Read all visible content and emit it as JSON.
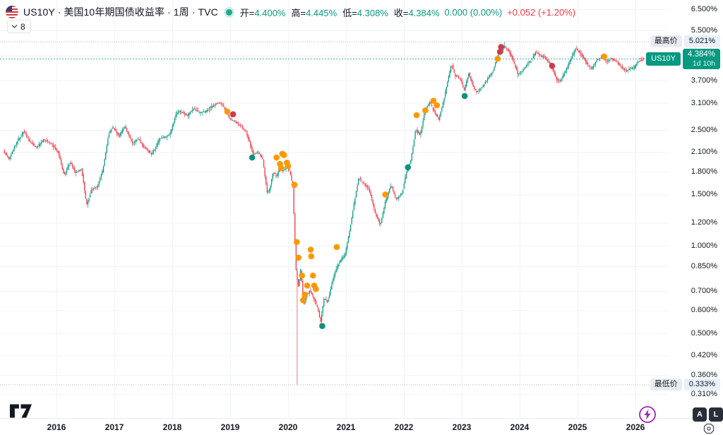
{
  "header": {
    "symbol_title": "US10Y · 美国10年期国债收益率 · 1周 · TVC",
    "ohlc": [
      {
        "label": "开=",
        "value": "4.400%"
      },
      {
        "label": "高=",
        "value": "4.445%"
      },
      {
        "label": "低=",
        "value": "4.308%"
      },
      {
        "label": "收=",
        "value": "4.384%"
      }
    ],
    "change_zero": "0.000 (0.00%)",
    "change_positive": "+0.052 (+1.20%)",
    "badge_count": "8"
  },
  "price_scale": {
    "labels": [
      "6.500%",
      "5.500%",
      "3.700%",
      "3.100%",
      "2.500%",
      "2.100%",
      "1.800%",
      "1.500%",
      "1.200%",
      "1.000%",
      "0.850%",
      "0.700%",
      "0.600%",
      "0.500%",
      "0.420%",
      "0.360%",
      "0.310%"
    ]
  },
  "time_scale": {
    "labels": [
      "2016",
      "2017",
      "2018",
      "2019",
      "2020",
      "2021",
      "2022",
      "2023",
      "2024",
      "2025",
      "2026"
    ]
  },
  "floating_labels": {
    "high": {
      "label": "最高价",
      "value": "5.021%"
    },
    "current": {
      "symbol": "US10Y",
      "price": "4.384%",
      "countdown": "1d 10h"
    },
    "low": {
      "label": "最低价",
      "value": "0.333%"
    }
  },
  "corner_buttons": {
    "a": "A",
    "l": "L"
  },
  "chart_data": {
    "type": "candlestick",
    "symbol": "US10Y",
    "timeframe": "1W",
    "y_scale": "log",
    "x_domain": [
      2015.1,
      2026.17
    ],
    "x_ticks": [
      2016,
      2017,
      2018,
      2019,
      2020,
      2021,
      2022,
      2023,
      2024,
      2025,
      2026
    ],
    "y_axis_ticks": [
      6.5,
      5.5,
      3.7,
      3.1,
      2.5,
      2.1,
      1.8,
      1.5,
      1.2,
      1.0,
      0.85,
      0.7,
      0.6,
      0.5,
      0.42,
      0.36,
      0.31
    ],
    "grid_extra_values": [
      4.5
    ],
    "high": {
      "t": 2023.74,
      "value": 5.021
    },
    "low": {
      "t": 2020.16,
      "value": 0.333
    },
    "last_bar": {
      "open": 4.4,
      "high": 4.445,
      "low": 4.308,
      "close": 4.384
    },
    "anchors": [
      [
        2015.1,
        2.12
      ],
      [
        2015.2,
        1.98
      ],
      [
        2015.3,
        2.2
      ],
      [
        2015.45,
        2.48
      ],
      [
        2015.55,
        2.28
      ],
      [
        2015.68,
        2.18
      ],
      [
        2015.8,
        2.32
      ],
      [
        2015.93,
        2.24
      ],
      [
        2016.05,
        2.1
      ],
      [
        2016.15,
        1.74
      ],
      [
        2016.25,
        1.94
      ],
      [
        2016.35,
        1.78
      ],
      [
        2016.45,
        1.84
      ],
      [
        2016.54,
        1.38
      ],
      [
        2016.62,
        1.55
      ],
      [
        2016.72,
        1.6
      ],
      [
        2016.82,
        1.82
      ],
      [
        2016.92,
        2.42
      ],
      [
        2016.99,
        2.56
      ],
      [
        2017.1,
        2.38
      ],
      [
        2017.2,
        2.58
      ],
      [
        2017.33,
        2.24
      ],
      [
        2017.43,
        2.34
      ],
      [
        2017.53,
        2.18
      ],
      [
        2017.67,
        2.06
      ],
      [
        2017.8,
        2.34
      ],
      [
        2017.9,
        2.36
      ],
      [
        2017.99,
        2.44
      ],
      [
        2018.08,
        2.84
      ],
      [
        2018.16,
        2.9
      ],
      [
        2018.28,
        2.8
      ],
      [
        2018.38,
        2.96
      ],
      [
        2018.5,
        2.86
      ],
      [
        2018.6,
        2.9
      ],
      [
        2018.7,
        3.0
      ],
      [
        2018.8,
        3.1
      ],
      [
        2018.88,
        3.05
      ],
      [
        2018.95,
        2.92
      ],
      [
        2019.0,
        2.74
      ],
      [
        2019.1,
        2.66
      ],
      [
        2019.2,
        2.6
      ],
      [
        2019.3,
        2.44
      ],
      [
        2019.42,
        2.06
      ],
      [
        2019.5,
        2.1
      ],
      [
        2019.58,
        1.98
      ],
      [
        2019.66,
        1.52
      ],
      [
        2019.7,
        1.56
      ],
      [
        2019.76,
        1.8
      ],
      [
        2019.82,
        1.72
      ],
      [
        2019.88,
        1.86
      ],
      [
        2019.94,
        1.8
      ],
      [
        2019.99,
        1.9
      ],
      [
        2020.05,
        1.8
      ],
      [
        2020.1,
        1.6
      ],
      [
        2020.13,
        1.15
      ],
      [
        2020.16,
        0.8
      ],
      [
        2020.2,
        0.72
      ],
      [
        2020.24,
        0.84
      ],
      [
        2020.28,
        0.62
      ],
      [
        2020.34,
        0.68
      ],
      [
        2020.4,
        0.7
      ],
      [
        2020.46,
        0.66
      ],
      [
        2020.52,
        0.62
      ],
      [
        2020.58,
        0.55
      ],
      [
        2020.64,
        0.66
      ],
      [
        2020.7,
        0.64
      ],
      [
        2020.76,
        0.72
      ],
      [
        2020.82,
        0.8
      ],
      [
        2020.88,
        0.86
      ],
      [
        2020.94,
        0.9
      ],
      [
        2021.0,
        0.93
      ],
      [
        2021.08,
        1.12
      ],
      [
        2021.16,
        1.4
      ],
      [
        2021.24,
        1.72
      ],
      [
        2021.32,
        1.64
      ],
      [
        2021.42,
        1.56
      ],
      [
        2021.52,
        1.3
      ],
      [
        2021.61,
        1.18
      ],
      [
        2021.7,
        1.42
      ],
      [
        2021.8,
        1.62
      ],
      [
        2021.88,
        1.44
      ],
      [
        2021.99,
        1.52
      ],
      [
        2022.06,
        1.78
      ],
      [
        2022.14,
        1.96
      ],
      [
        2022.22,
        2.5
      ],
      [
        2022.3,
        2.4
      ],
      [
        2022.38,
        2.9
      ],
      [
        2022.46,
        3.12
      ],
      [
        2022.54,
        2.9
      ],
      [
        2022.62,
        2.72
      ],
      [
        2022.7,
        3.12
      ],
      [
        2022.78,
        3.7
      ],
      [
        2022.84,
        4.22
      ],
      [
        2022.9,
        3.85
      ],
      [
        2022.99,
        3.75
      ],
      [
        2023.06,
        3.42
      ],
      [
        2023.14,
        3.92
      ],
      [
        2023.22,
        3.5
      ],
      [
        2023.28,
        3.36
      ],
      [
        2023.36,
        3.5
      ],
      [
        2023.46,
        3.72
      ],
      [
        2023.56,
        4.0
      ],
      [
        2023.64,
        4.5
      ],
      [
        2023.7,
        4.68
      ],
      [
        2023.76,
        4.85
      ],
      [
        2023.82,
        4.7
      ],
      [
        2023.88,
        4.45
      ],
      [
        2023.94,
        4.15
      ],
      [
        2023.99,
        3.88
      ],
      [
        2024.06,
        4.0
      ],
      [
        2024.14,
        4.18
      ],
      [
        2024.22,
        4.35
      ],
      [
        2024.3,
        4.65
      ],
      [
        2024.38,
        4.5
      ],
      [
        2024.46,
        4.42
      ],
      [
        2024.54,
        4.24
      ],
      [
        2024.6,
        4.0
      ],
      [
        2024.66,
        3.72
      ],
      [
        2024.72,
        3.68
      ],
      [
        2024.8,
        3.95
      ],
      [
        2024.86,
        4.2
      ],
      [
        2024.94,
        4.55
      ],
      [
        2025.0,
        4.78
      ],
      [
        2025.08,
        4.55
      ],
      [
        2025.16,
        4.3
      ],
      [
        2025.25,
        4.02
      ],
      [
        2025.35,
        4.35
      ],
      [
        2025.44,
        4.45
      ],
      [
        2025.52,
        4.3
      ],
      [
        2025.6,
        4.4
      ],
      [
        2025.68,
        4.3
      ],
      [
        2025.76,
        4.15
      ],
      [
        2025.84,
        3.98
      ],
      [
        2025.92,
        4.05
      ],
      [
        2026.0,
        4.1
      ],
      [
        2026.06,
        4.3
      ],
      [
        2026.12,
        4.33
      ],
      [
        2026.17,
        4.384
      ]
    ],
    "markers": [
      [
        2018.95,
        2.89,
        "orange"
      ],
      [
        2019.05,
        2.83,
        "red"
      ],
      [
        2019.38,
        2.01,
        "teal"
      ],
      [
        2019.8,
        2.01,
        "orange"
      ],
      [
        2019.86,
        1.91,
        "orange"
      ],
      [
        2019.88,
        1.85,
        "orange"
      ],
      [
        2019.9,
        2.07,
        "orange"
      ],
      [
        2019.93,
        2.05,
        "orange"
      ],
      [
        2019.98,
        1.93,
        "orange"
      ],
      [
        2020.0,
        1.88,
        "orange"
      ],
      [
        2020.11,
        1.62,
        "orange"
      ],
      [
        2020.15,
        1.03,
        "orange"
      ],
      [
        2020.18,
        0.91,
        "orange"
      ],
      [
        2020.24,
        0.79,
        "orange"
      ],
      [
        2020.26,
        0.65,
        "orange"
      ],
      [
        2020.29,
        0.68,
        "orange"
      ],
      [
        2020.33,
        0.73,
        "orange"
      ],
      [
        2020.39,
        0.97,
        "orange"
      ],
      [
        2020.4,
        0.92,
        "orange"
      ],
      [
        2020.43,
        0.79,
        "orange"
      ],
      [
        2020.45,
        0.73,
        "orange"
      ],
      [
        2020.48,
        0.71,
        "orange"
      ],
      [
        2020.59,
        0.53,
        "teal"
      ],
      [
        2020.84,
        0.99,
        "orange"
      ],
      [
        2021.68,
        1.5,
        "orange"
      ],
      [
        2022.07,
        1.86,
        "teal"
      ],
      [
        2022.22,
        2.81,
        "orange"
      ],
      [
        2022.37,
        2.92,
        "orange"
      ],
      [
        2022.51,
        3.15,
        "orange"
      ],
      [
        2022.57,
        3.04,
        "orange"
      ],
      [
        2023.05,
        3.27,
        "teal"
      ],
      [
        2023.62,
        4.39,
        "orange"
      ],
      [
        2023.66,
        4.64,
        "red"
      ],
      [
        2023.68,
        4.82,
        "red"
      ],
      [
        2024.56,
        4.15,
        "red"
      ],
      [
        2025.46,
        4.47,
        "orange"
      ]
    ],
    "colors": {
      "up": "#089981",
      "down": "#f23645",
      "grid": "#f0f3fa",
      "dotted_gray": "#b2b5be",
      "dotted_current": "#089981",
      "marker_orange": "#ff9800",
      "marker_red": "#d13a4d",
      "marker_teal": "#0f9081"
    }
  }
}
